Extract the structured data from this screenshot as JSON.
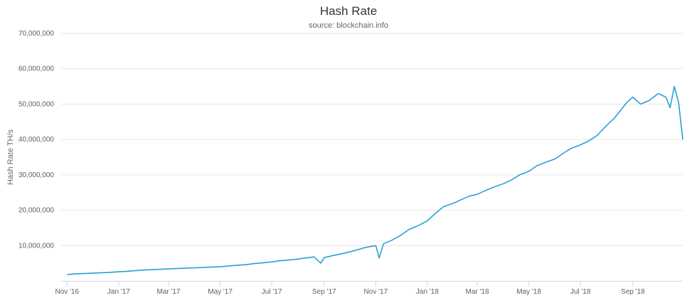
{
  "chart_data": {
    "type": "line",
    "title": "Hash Rate",
    "subtitle": "source: blockchain.info",
    "xlabel": "",
    "ylabel": "Hash Rate TH/s",
    "ylim": [
      0,
      70000000
    ],
    "xlim": [
      "2016-10-25",
      "2018-10-30"
    ],
    "grid": true,
    "legend": "none",
    "color": "#2aa0d4",
    "y_ticks": [
      {
        "value": 10000000,
        "label": "10,000,000"
      },
      {
        "value": 20000000,
        "label": "20,000,000"
      },
      {
        "value": 30000000,
        "label": "30,000,000"
      },
      {
        "value": 40000000,
        "label": "40,000,000"
      },
      {
        "value": 50000000,
        "label": "50,000,000"
      },
      {
        "value": 60000000,
        "label": "60,000,000"
      },
      {
        "value": 70000000,
        "label": "70,000,000"
      }
    ],
    "x_ticks": [
      {
        "date": "2016-11-01",
        "label": "Nov '16"
      },
      {
        "date": "2017-01-01",
        "label": "Jan '17"
      },
      {
        "date": "2017-03-01",
        "label": "Mar '17"
      },
      {
        "date": "2017-05-01",
        "label": "May '17"
      },
      {
        "date": "2017-07-01",
        "label": "Jul '17"
      },
      {
        "date": "2017-09-01",
        "label": "Sep '17"
      },
      {
        "date": "2017-11-01",
        "label": "Nov '17"
      },
      {
        "date": "2018-01-01",
        "label": "Jan '18"
      },
      {
        "date": "2018-03-01",
        "label": "Mar '18"
      },
      {
        "date": "2018-05-01",
        "label": "May '18"
      },
      {
        "date": "2018-07-01",
        "label": "Jul '18"
      },
      {
        "date": "2018-09-01",
        "label": "Sep '18"
      }
    ],
    "series": [
      {
        "x": [
          "2016-11-01",
          "2016-11-10",
          "2016-11-20",
          "2016-12-01",
          "2016-12-10",
          "2016-12-20",
          "2017-01-01",
          "2017-01-10",
          "2017-01-20",
          "2017-02-01",
          "2017-02-10",
          "2017-02-20",
          "2017-03-01",
          "2017-03-10",
          "2017-03-20",
          "2017-04-01",
          "2017-04-10",
          "2017-04-20",
          "2017-05-01",
          "2017-05-10",
          "2017-05-20",
          "2017-06-01",
          "2017-06-10",
          "2017-06-20",
          "2017-07-01",
          "2017-07-10",
          "2017-07-20",
          "2017-08-01",
          "2017-08-10",
          "2017-08-20",
          "2017-08-28",
          "2017-09-01",
          "2017-09-10",
          "2017-09-20",
          "2017-10-01",
          "2017-10-10",
          "2017-10-20",
          "2017-11-01",
          "2017-11-05",
          "2017-11-10",
          "2017-11-20",
          "2017-12-01",
          "2017-12-10",
          "2017-12-20",
          "2018-01-01",
          "2018-01-10",
          "2018-01-20",
          "2018-02-01",
          "2018-02-10",
          "2018-02-20",
          "2018-03-01",
          "2018-03-10",
          "2018-03-20",
          "2018-04-01",
          "2018-04-10",
          "2018-04-20",
          "2018-05-01",
          "2018-05-10",
          "2018-05-20",
          "2018-06-01",
          "2018-06-10",
          "2018-06-20",
          "2018-07-01",
          "2018-07-10",
          "2018-07-20",
          "2018-08-01",
          "2018-08-10",
          "2018-08-20",
          "2018-08-25",
          "2018-09-01",
          "2018-09-10",
          "2018-09-20",
          "2018-10-01",
          "2018-10-10",
          "2018-10-15",
          "2018-10-20",
          "2018-10-25",
          "2018-10-30"
        ],
        "values": [
          1800000,
          2000000,
          2100000,
          2200000,
          2300000,
          2400000,
          2600000,
          2700000,
          2900000,
          3100000,
          3200000,
          3300000,
          3400000,
          3500000,
          3600000,
          3700000,
          3800000,
          3900000,
          4000000,
          4200000,
          4400000,
          4600000,
          4900000,
          5100000,
          5400000,
          5700000,
          5900000,
          6200000,
          6500000,
          6800000,
          5000000,
          6600000,
          7100000,
          7600000,
          8200000,
          8800000,
          9500000,
          10000000,
          6500000,
          10500000,
          11500000,
          13000000,
          14500000,
          15500000,
          17000000,
          19000000,
          21000000,
          22000000,
          23000000,
          24000000,
          24500000,
          25500000,
          26500000,
          27500000,
          28500000,
          30000000,
          31000000,
          32500000,
          33500000,
          34500000,
          36000000,
          37500000,
          38500000,
          39500000,
          41000000,
          44000000,
          46000000,
          49000000,
          50500000,
          52000000,
          50000000,
          51000000,
          53000000,
          52000000,
          49000000,
          55000000,
          50500000,
          40000000
        ]
      }
    ]
  }
}
